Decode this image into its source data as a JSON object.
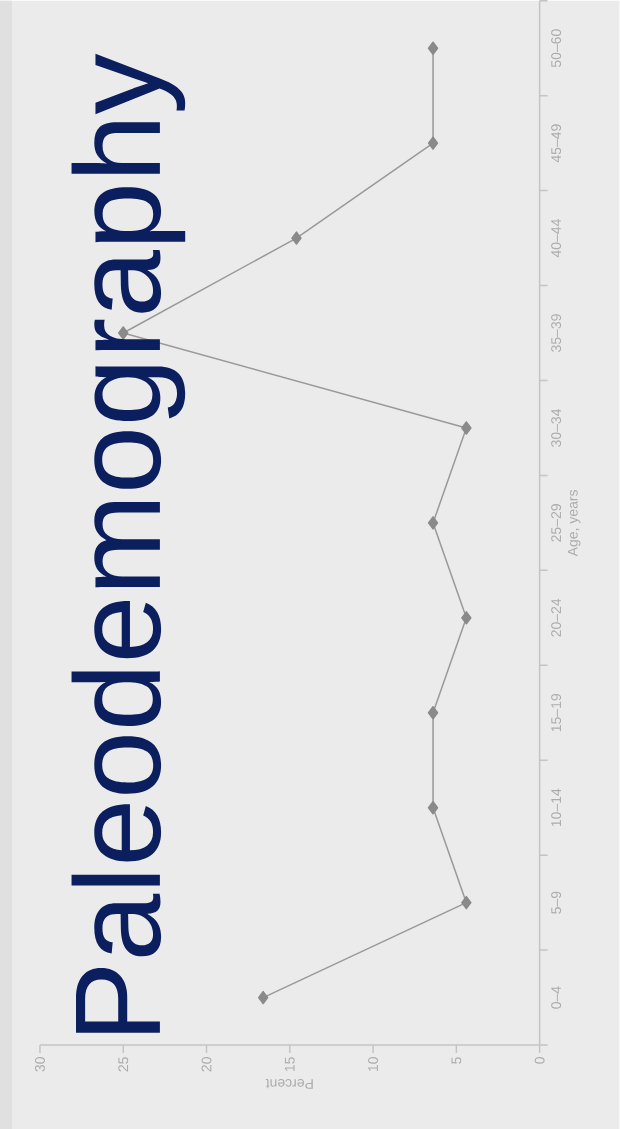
{
  "chart_data": {
    "type": "line",
    "orientation": "horizontal",
    "title": "Paleodemography",
    "xlabel": "Percent",
    "ylabel": "Age, years",
    "categories": [
      "50–60",
      "45–49",
      "40–44",
      "35–39",
      "30–34",
      "25–29",
      "20–24",
      "15–19",
      "10–14",
      "5–9",
      "0–4"
    ],
    "values": [
      6.4,
      6.4,
      14.6,
      25,
      4.4,
      6.4,
      4.4,
      6.4,
      6.4,
      4.4,
      16.6
    ],
    "color": "#999999",
    "marker": "diamond",
    "line_style": "solid",
    "xlim": [
      30,
      0
    ],
    "xticks": [
      30,
      25,
      20,
      15,
      10,
      5,
      0
    ]
  }
}
